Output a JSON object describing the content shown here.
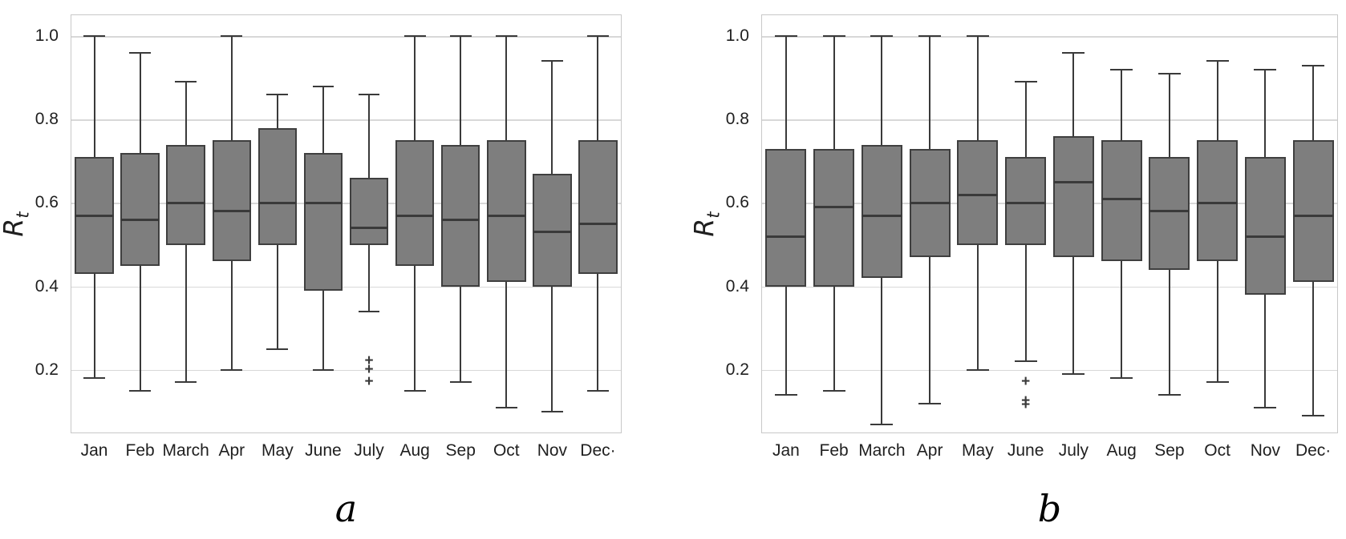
{
  "style": {
    "box_fill": "#7e7e7e",
    "box_border": "#3f3f3f",
    "whisker_color": "#3a3a3a",
    "grid_color": "#d8d8d8",
    "frame_color": "#c8c8c8",
    "text_color": "#1f1f1f",
    "background": "#ffffff"
  },
  "chart_data": [
    {
      "type": "box",
      "panel_label": "a",
      "ylabel": "Rt",
      "xlabel": "",
      "yticks": [
        1.0,
        0.8,
        0.6,
        0.4,
        0.2
      ],
      "ylim": [
        0.05,
        1.05
      ],
      "grid": "horizontal",
      "legend": "none",
      "categories": [
        "Jan",
        "Feb",
        "March",
        "Apr",
        "May",
        "June",
        "July",
        "Aug",
        "Sep",
        "Oct",
        "Nov",
        "Dec·"
      ],
      "series": [
        {
          "category": "Jan",
          "low": 0.18,
          "q1": 0.43,
          "median": 0.57,
          "q3": 0.71,
          "high": 1.0,
          "outliers": []
        },
        {
          "category": "Feb",
          "low": 0.15,
          "q1": 0.45,
          "median": 0.56,
          "q3": 0.72,
          "high": 0.96,
          "outliers": []
        },
        {
          "category": "March",
          "low": 0.17,
          "q1": 0.5,
          "median": 0.6,
          "q3": 0.74,
          "high": 0.89,
          "outliers": []
        },
        {
          "category": "Apr",
          "low": 0.2,
          "q1": 0.46,
          "median": 0.58,
          "q3": 0.75,
          "high": 1.0,
          "outliers": []
        },
        {
          "category": "May",
          "low": 0.25,
          "q1": 0.5,
          "median": 0.6,
          "q3": 0.78,
          "high": 0.86,
          "outliers": []
        },
        {
          "category": "June",
          "low": 0.2,
          "q1": 0.39,
          "median": 0.6,
          "q3": 0.72,
          "high": 0.88,
          "outliers": []
        },
        {
          "category": "July",
          "low": 0.34,
          "q1": 0.5,
          "median": 0.54,
          "q3": 0.66,
          "high": 0.86,
          "outliers": [
            0.22,
            0.2,
            0.17
          ]
        },
        {
          "category": "Aug",
          "low": 0.15,
          "q1": 0.45,
          "median": 0.57,
          "q3": 0.75,
          "high": 1.0,
          "outliers": []
        },
        {
          "category": "Sep",
          "low": 0.17,
          "q1": 0.4,
          "median": 0.56,
          "q3": 0.74,
          "high": 1.0,
          "outliers": []
        },
        {
          "category": "Oct",
          "low": 0.11,
          "q1": 0.41,
          "median": 0.57,
          "q3": 0.75,
          "high": 1.0,
          "outliers": []
        },
        {
          "category": "Nov",
          "low": 0.1,
          "q1": 0.4,
          "median": 0.53,
          "q3": 0.67,
          "high": 0.94,
          "outliers": []
        },
        {
          "category": "Dec",
          "low": 0.15,
          "q1": 0.43,
          "median": 0.55,
          "q3": 0.75,
          "high": 1.0,
          "outliers": []
        }
      ]
    },
    {
      "type": "box",
      "panel_label": "b",
      "ylabel": "Rt",
      "xlabel": "",
      "yticks": [
        1.0,
        0.8,
        0.6,
        0.4,
        0.2
      ],
      "ylim": [
        0.05,
        1.05
      ],
      "grid": "horizontal",
      "legend": "none",
      "categories": [
        "Jan",
        "Feb",
        "March",
        "Apr",
        "May",
        "June",
        "July",
        "Aug",
        "Sep",
        "Oct",
        "Nov",
        "Dec·"
      ],
      "series": [
        {
          "category": "Jan",
          "low": 0.14,
          "q1": 0.4,
          "median": 0.52,
          "q3": 0.73,
          "high": 1.0,
          "outliers": []
        },
        {
          "category": "Feb",
          "low": 0.15,
          "q1": 0.4,
          "median": 0.59,
          "q3": 0.73,
          "high": 1.0,
          "outliers": []
        },
        {
          "category": "March",
          "low": 0.07,
          "q1": 0.42,
          "median": 0.57,
          "q3": 0.74,
          "high": 1.0,
          "outliers": []
        },
        {
          "category": "Apr",
          "low": 0.12,
          "q1": 0.47,
          "median": 0.6,
          "q3": 0.73,
          "high": 1.0,
          "outliers": []
        },
        {
          "category": "May",
          "low": 0.2,
          "q1": 0.5,
          "median": 0.62,
          "q3": 0.75,
          "high": 1.0,
          "outliers": []
        },
        {
          "category": "June",
          "low": 0.22,
          "q1": 0.5,
          "median": 0.6,
          "q3": 0.71,
          "high": 0.89,
          "outliers": [
            0.17,
            0.125,
            0.115
          ]
        },
        {
          "category": "July",
          "low": 0.19,
          "q1": 0.47,
          "median": 0.65,
          "q3": 0.76,
          "high": 0.96,
          "outliers": []
        },
        {
          "category": "Aug",
          "low": 0.18,
          "q1": 0.46,
          "median": 0.61,
          "q3": 0.75,
          "high": 0.92,
          "outliers": []
        },
        {
          "category": "Sep",
          "low": 0.14,
          "q1": 0.44,
          "median": 0.58,
          "q3": 0.71,
          "high": 0.91,
          "outliers": []
        },
        {
          "category": "Oct",
          "low": 0.17,
          "q1": 0.46,
          "median": 0.6,
          "q3": 0.75,
          "high": 0.94,
          "outliers": []
        },
        {
          "category": "Nov",
          "low": 0.11,
          "q1": 0.38,
          "median": 0.52,
          "q3": 0.71,
          "high": 0.92,
          "outliers": []
        },
        {
          "category": "Dec",
          "low": 0.09,
          "q1": 0.41,
          "median": 0.57,
          "q3": 0.75,
          "high": 0.93,
          "outliers": []
        }
      ]
    }
  ]
}
